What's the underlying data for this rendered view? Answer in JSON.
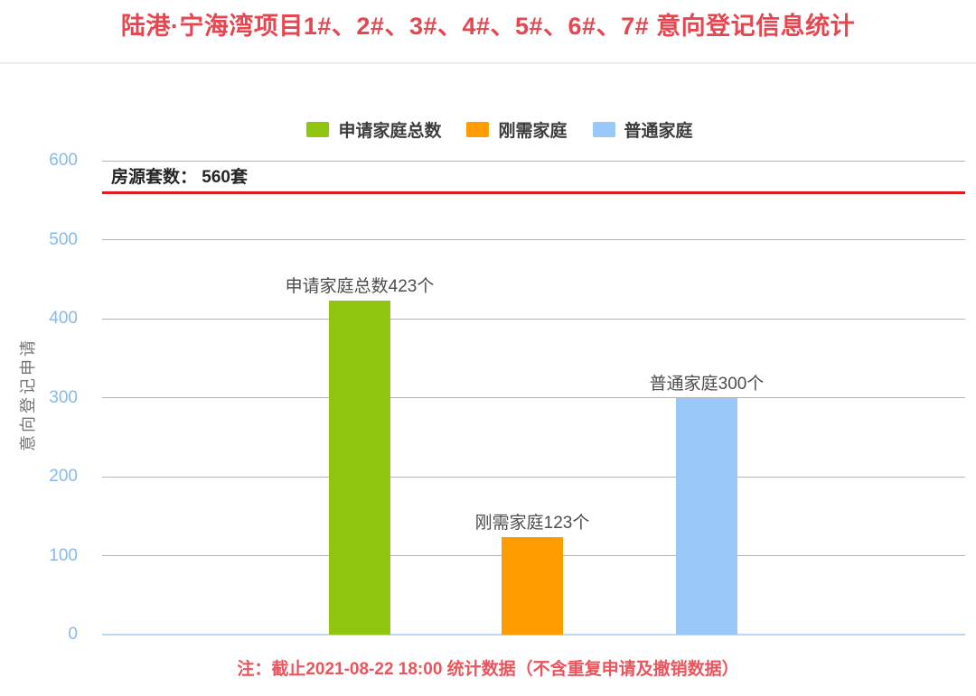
{
  "chart_data": {
    "type": "bar",
    "title": "陆港·宁海湾项目1#、2#、3#、4#、5#、6#、7# 意向登记信息统计",
    "ylabel": "意向登记申请",
    "xlabel": "",
    "ylim": [
      0,
      600
    ],
    "yticks": [
      0,
      100,
      200,
      300,
      400,
      500,
      600
    ],
    "grid": true,
    "legend_position": "top",
    "categories": [
      "申请家庭总数",
      "刚需家庭",
      "普通家庭"
    ],
    "values": [
      423,
      123,
      300
    ],
    "bar_labels": [
      "申请家庭总数423个",
      "刚需家庭123个",
      "普通家庭300个"
    ],
    "bar_colors": [
      "#90c60f",
      "#ff9d00",
      "#9ac9f9"
    ],
    "legend": [
      {
        "label": "申请家庭总数",
        "color": "#90c60f"
      },
      {
        "label": "刚需家庭",
        "color": "#ff9d00"
      },
      {
        "label": "普通家庭",
        "color": "#9ac9f9"
      }
    ],
    "reference_line": {
      "value": 560,
      "label": "房源套数： 560套",
      "color": "#e11b1f"
    },
    "note": "注：截止2021-08-22 18:00 统计数据（不含重复申请及撤销数据）",
    "colors": {
      "title": "#e5464f",
      "note": "#ea545c",
      "tick_label": "#86b9ef",
      "gridline": "#b4b4b4",
      "baseline": "#bcd7f1",
      "axis_title": "#757575",
      "bar_label": "#4d4d4d",
      "legend_label": "#3c3c3c",
      "reference_label": "#262626"
    }
  }
}
